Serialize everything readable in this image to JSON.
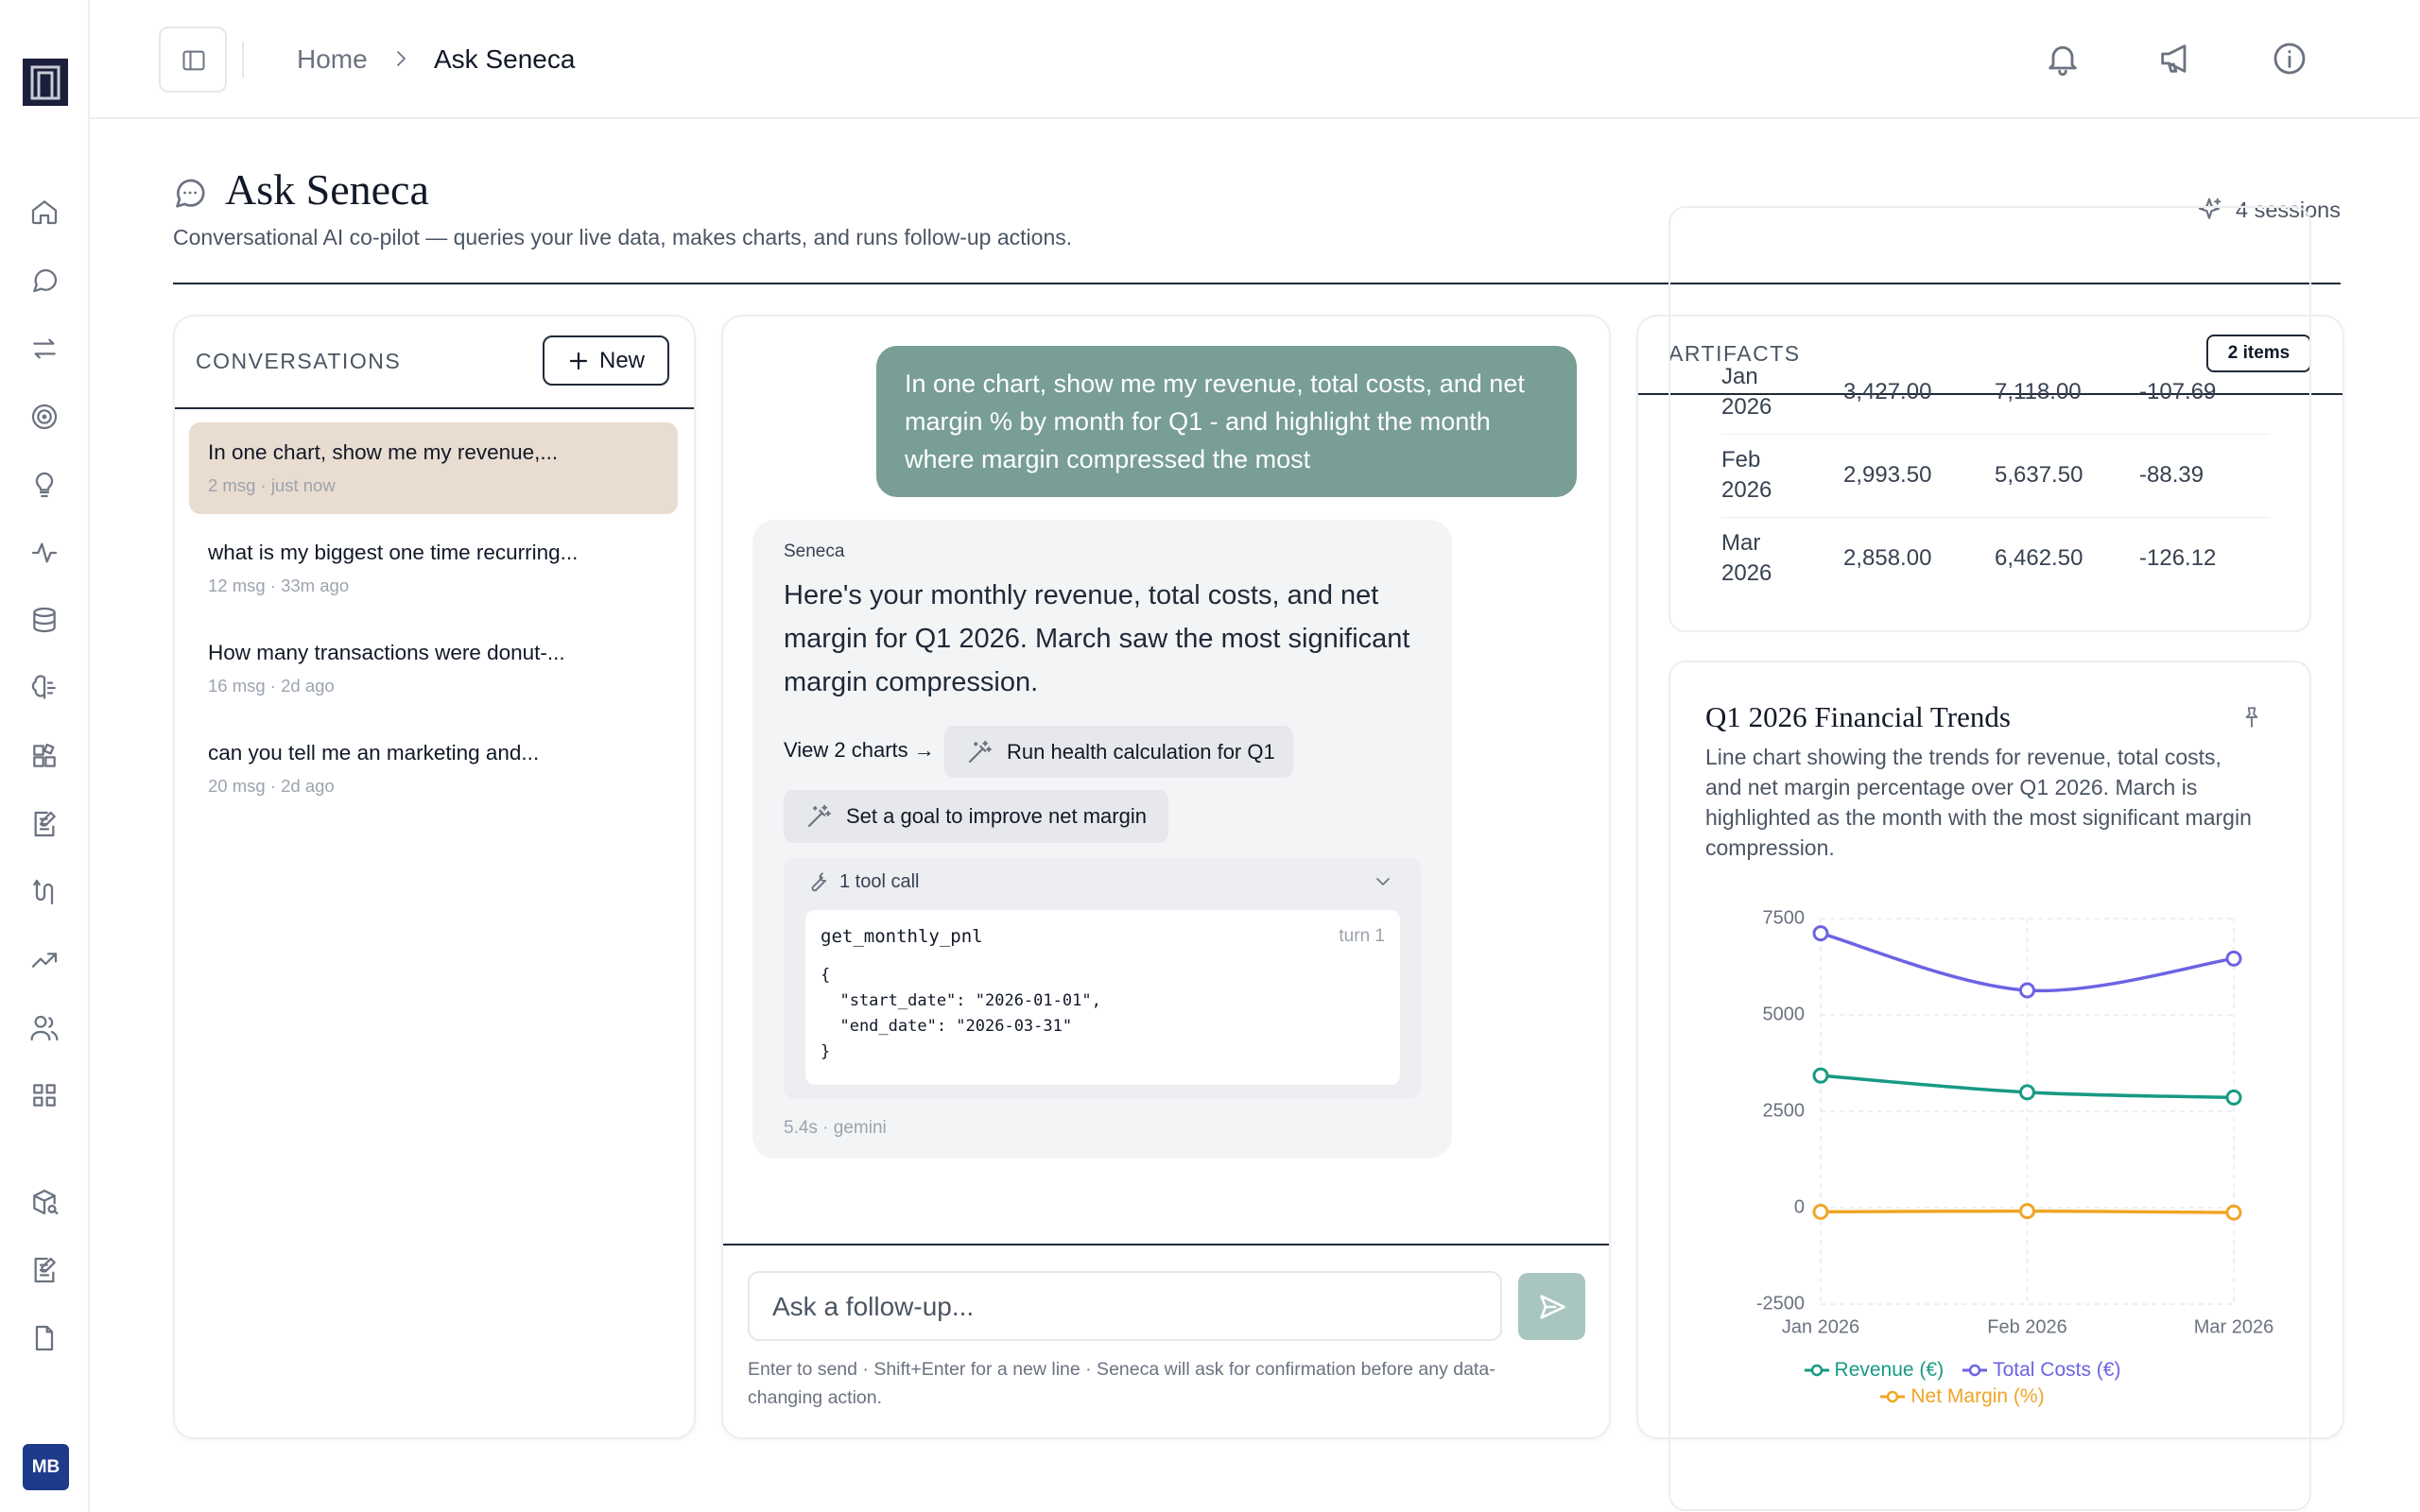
{
  "sidebar": {
    "avatar": "MB"
  },
  "topbar": {
    "breadcrumb": [
      "Home",
      "Ask Seneca"
    ]
  },
  "header": {
    "title": "Ask Seneca",
    "subtitle": "Conversational AI co-pilot — queries your live data, makes charts, and runs follow-up actions.",
    "sessions": "4 sessions"
  },
  "conversations": {
    "heading": "CONVERSATIONS",
    "new_button": "New",
    "items": [
      {
        "title": "In one chart, show me my revenue,...",
        "meta": "2 msg · just now"
      },
      {
        "title": "what is my biggest one time recurring...",
        "meta": "12 msg · 33m ago"
      },
      {
        "title": "How many transactions were donut-...",
        "meta": "16 msg · 2d ago"
      },
      {
        "title": "can you tell me an marketing and...",
        "meta": "20 msg · 2d ago"
      }
    ]
  },
  "chat": {
    "user_message": "In one chart, show me my revenue, total costs, and net margin % by month for Q1 - and highlight the month where margin compressed the most",
    "assistant": {
      "name": "Seneca",
      "text": "Here's your monthly revenue, total costs, and net margin for Q1 2026. March saw the most significant margin compression.",
      "view_link": "View 2 charts →",
      "actions": [
        "Run health calculation for Q1",
        "Set a goal to improve net margin"
      ],
      "tool": {
        "summary": "1 tool call",
        "name": "get_monthly_pnl",
        "turn": "turn 1",
        "args": "{\n  \"start_date\": \"2026-01-01\",\n  \"end_date\": \"2026-03-31\"\n}"
      },
      "meta": "5.4s · gemini"
    },
    "input_placeholder": "Ask a follow-up...",
    "hint": "Enter to send · Shift+Enter for a new line · Seneca will ask for confirmation before any data-changing action."
  },
  "artifacts": {
    "heading": "ARTIFACTS",
    "count": "2 items",
    "table": {
      "rows": [
        [
          "Jan 2026",
          "3,427.00",
          "7,118.00",
          "-107.69"
        ],
        [
          "Feb 2026",
          "2,993.50",
          "5,637.50",
          "-88.39"
        ],
        [
          "Mar 2026",
          "2,858.00",
          "6,462.50",
          "-126.12"
        ]
      ]
    }
  },
  "chart_data": {
    "type": "line",
    "title": "Q1 2026 Financial Trends",
    "subtitle": "Line chart showing the trends for revenue, total costs, and net margin percentage over Q1 2026. March is highlighted as the month with the most significant margin compression.",
    "categories": [
      "Jan 2026",
      "Feb 2026",
      "Mar 2026"
    ],
    "series": [
      {
        "name": "Revenue (€)",
        "color": "#179a83",
        "values": [
          3427,
          2993.5,
          2858
        ]
      },
      {
        "name": "Total Costs (€)",
        "color": "#6b63e3",
        "values": [
          7118,
          5637.5,
          6462.5
        ]
      },
      {
        "name": "Net Margin (%)",
        "color": "#f0a526",
        "values": [
          -107.69,
          -88.39,
          -126.12
        ]
      }
    ],
    "ylim": [
      -2500,
      7500
    ],
    "yticks": [
      -2500,
      0,
      2500,
      5000,
      7500
    ],
    "grid": true
  }
}
